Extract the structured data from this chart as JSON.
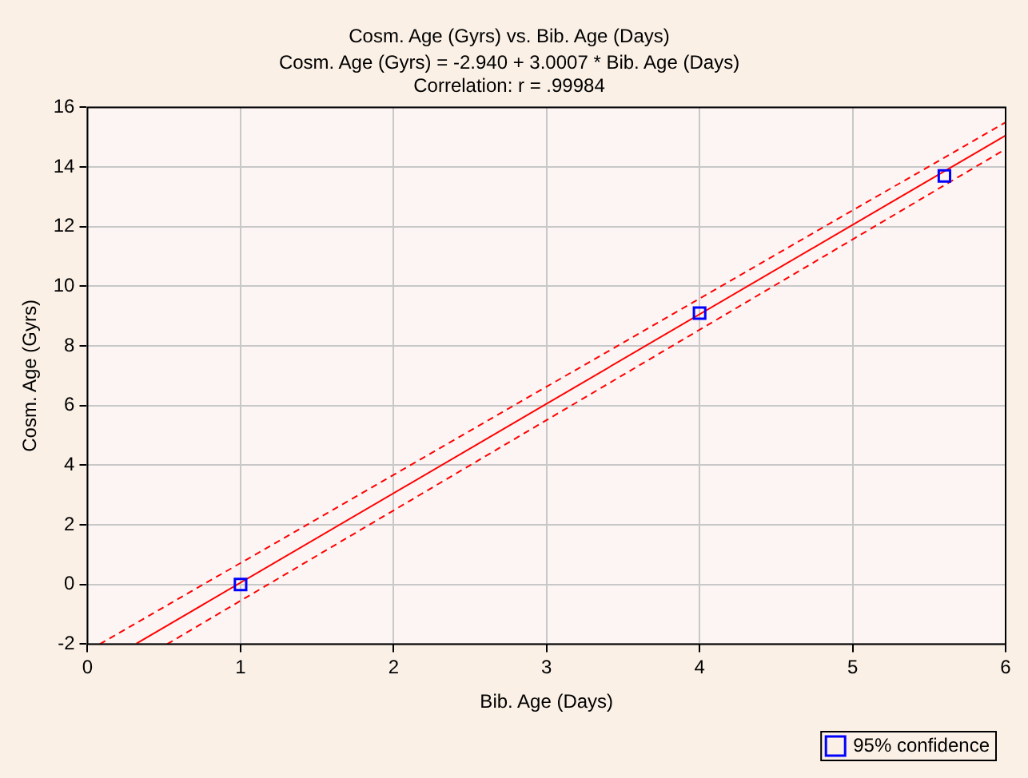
{
  "chart_data": {
    "type": "scatter",
    "title": "Cosm. Age (Gyrs) vs. Bib. Age (Days)",
    "subtitle": "Cosm. Age (Gyrs) = -2.940 + 3.0007 * Bib. Age (Days)",
    "annotations": [
      "Correlation: r = .99984"
    ],
    "xlabel": "Bib. Age (Days)",
    "ylabel": "Cosm. Age (Gyrs)",
    "xlim": [
      0,
      6
    ],
    "ylim": [
      -2,
      16
    ],
    "xticks": [
      0,
      1,
      2,
      3,
      4,
      5,
      6
    ],
    "yticks": [
      -2,
      0,
      2,
      4,
      6,
      8,
      10,
      12,
      14,
      16
    ],
    "grid": true,
    "legend": "bottom right",
    "series": [
      {
        "name": "95% confidence",
        "marker": "square",
        "color": "#0000ff",
        "x": [
          1,
          4,
          5.6
        ],
        "values": [
          0,
          9.1,
          13.7
        ]
      },
      {
        "type": "line",
        "marker": "none",
        "line_style": "solid",
        "color": "#ff0000",
        "x": [
          0.32,
          6
        ],
        "values": [
          -1.98,
          15.06
        ]
      },
      {
        "type": "line",
        "marker": "none",
        "line_style": "dashed",
        "color": "#ff0000",
        "x": [
          0.08,
          6
        ],
        "values": [
          -2,
          15.5
        ]
      },
      {
        "type": "line",
        "marker": "none",
        "line_style": "dashed",
        "color": "#ff0000",
        "x": [
          0.52,
          6
        ],
        "values": [
          -2,
          14.6
        ]
      }
    ]
  }
}
